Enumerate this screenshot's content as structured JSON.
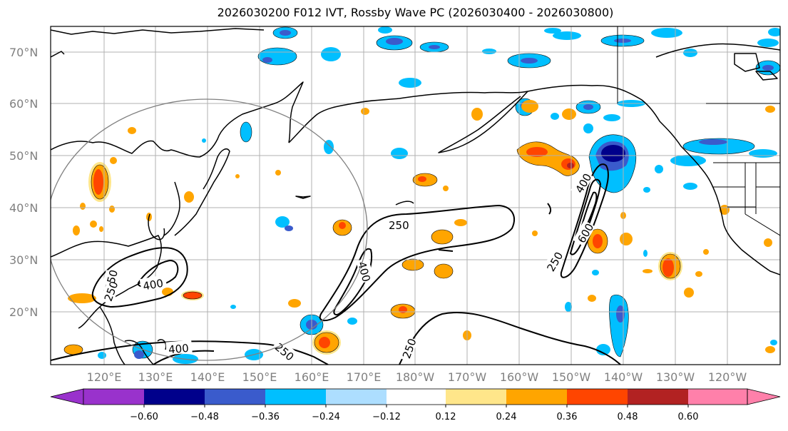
{
  "title": "2026030200 F012 IVT, Rossby Wave PC (2026030400 - 2026030800)",
  "lat_ticks": [
    "70°N",
    "60°N",
    "50°N",
    "40°N",
    "30°N",
    "20°N"
  ],
  "lon_ticks": [
    "120°E",
    "130°E",
    "140°E",
    "150°E",
    "160°E",
    "170°E",
    "180°W",
    "170°W",
    "160°W",
    "150°W",
    "140°W",
    "130°W",
    "120°W"
  ],
  "contour_labels": [
    "250",
    "400",
    "600",
    "250",
    "400",
    "250",
    "250",
    "400",
    "250",
    "400",
    "250"
  ],
  "colorbar": {
    "colors": [
      "#9932CC",
      "#00008B",
      "#3A5BCC",
      "#00BFFF",
      "#ADDEFF",
      "#FFFFFF",
      "#FFE68A",
      "#FFA500",
      "#FF4500",
      "#B22222",
      "#FF80AA"
    ],
    "labels": [
      "−0.60",
      "−0.48",
      "−0.36",
      "−0.24",
      "−0.12",
      "0.12",
      "0.24",
      "0.36",
      "0.48",
      "0.60"
    ]
  },
  "colors": {
    "contour": "#000000",
    "coast": "#000000",
    "grid": "#b0b0b0",
    "circle": "#808080",
    "tick_text": "#808080"
  }
}
